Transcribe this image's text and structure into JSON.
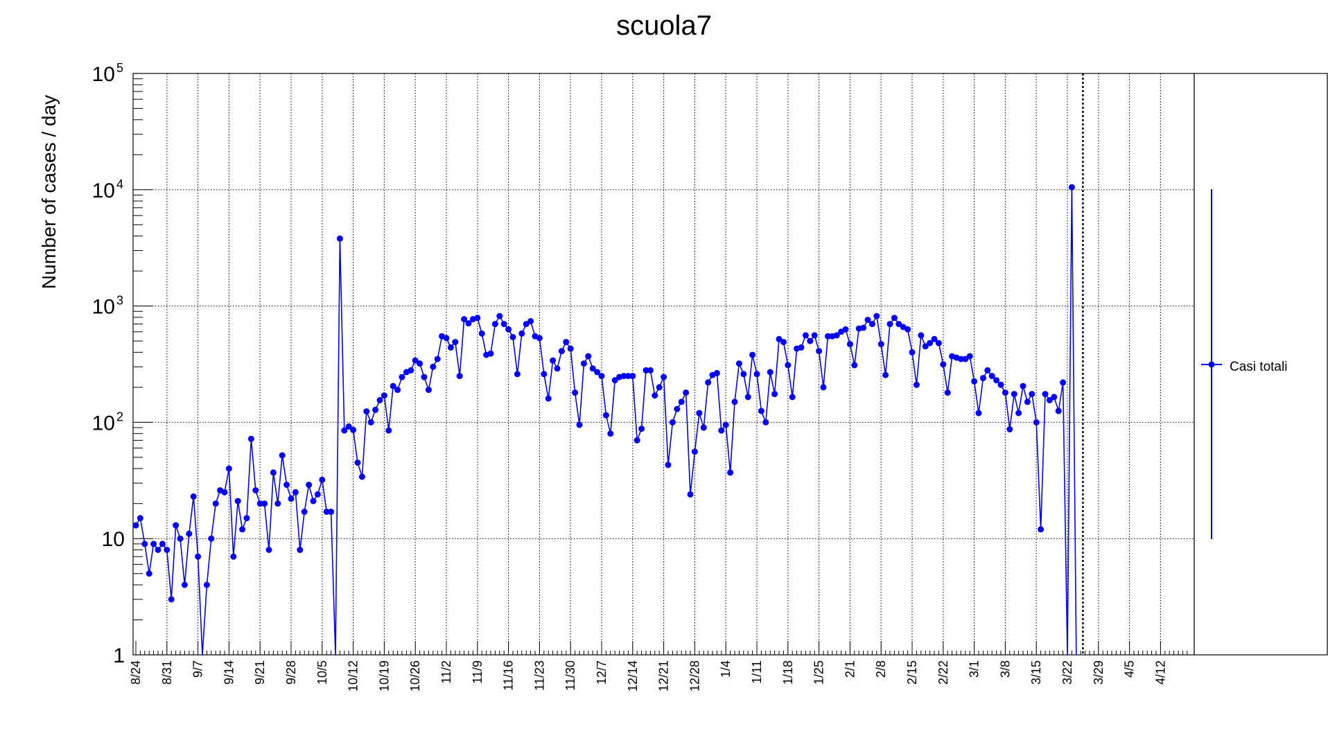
{
  "chart_data": {
    "type": "line",
    "title": "scuola7",
    "ylabel": "Number of cases / day",
    "xlabel": "",
    "yscale": "log",
    "ylim": [
      1,
      100000
    ],
    "y_ticks": [
      {
        "value": 1,
        "label": "1",
        "exp": ""
      },
      {
        "value": 10,
        "label": "10",
        "exp": ""
      },
      {
        "value": 100,
        "label": "10",
        "exp": "2"
      },
      {
        "value": 1000,
        "label": "10",
        "exp": "3"
      },
      {
        "value": 10000,
        "label": "10",
        "exp": "4"
      },
      {
        "value": 100000,
        "label": "10",
        "exp": "5"
      }
    ],
    "x_ticks": [
      "8/24",
      "8/31",
      "9/7",
      "9/14",
      "9/21",
      "9/28",
      "10/5",
      "10/12",
      "10/19",
      "10/26",
      "11/2",
      "11/9",
      "11/16",
      "11/23",
      "11/30",
      "12/7",
      "12/14",
      "12/21",
      "12/28",
      "1/4",
      "1/11",
      "1/18",
      "1/25",
      "2/1",
      "2/8",
      "2/15",
      "2/22",
      "3/1",
      "3/8",
      "3/15",
      "3/22",
      "3/29",
      "4/5",
      "4/12"
    ],
    "grid": true,
    "legend_position": "right",
    "vertical_line_day": 213.5,
    "series": [
      {
        "name": "Casi totali",
        "color": "#0000ff",
        "values": [
          13,
          15,
          9,
          5,
          9,
          8,
          9,
          8,
          3,
          13,
          10,
          4,
          11,
          23,
          7,
          0,
          4,
          10,
          20,
          26,
          25,
          40,
          7,
          21,
          12,
          15,
          72,
          26,
          20,
          20,
          8,
          37,
          20,
          52,
          29,
          22,
          25,
          8,
          17,
          29,
          21,
          24,
          32,
          17,
          17,
          0,
          3800,
          85,
          92,
          86,
          45,
          34,
          124,
          100,
          128,
          155,
          170,
          85,
          205,
          190,
          245,
          270,
          280,
          340,
          320,
          245,
          190,
          300,
          350,
          550,
          530,
          440,
          490,
          250,
          770,
          710,
          770,
          790,
          580,
          380,
          390,
          700,
          820,
          700,
          630,
          540,
          260,
          580,
          700,
          740,
          550,
          530,
          260,
          160,
          340,
          290,
          410,
          490,
          430,
          180,
          95,
          320,
          370,
          290,
          270,
          250,
          115,
          80,
          230,
          245,
          250,
          250,
          250,
          70,
          88,
          280,
          280,
          170,
          200,
          245,
          43,
          100,
          130,
          150,
          180,
          24,
          56,
          120,
          90,
          220,
          255,
          265,
          85,
          95,
          37,
          150,
          320,
          260,
          165,
          380,
          260,
          125,
          100,
          270,
          175,
          520,
          490,
          310,
          165,
          430,
          440,
          560,
          500,
          560,
          410,
          200,
          550,
          550,
          560,
          600,
          630,
          470,
          310,
          640,
          650,
          760,
          700,
          820,
          470,
          255,
          700,
          790,
          700,
          660,
          630,
          400,
          210,
          560,
          450,
          480,
          520,
          480,
          315,
          180,
          370,
          360,
          350,
          350,
          370,
          225,
          120,
          240,
          280,
          250,
          230,
          210,
          180,
          87,
          175,
          120,
          205,
          150,
          175,
          100,
          12,
          175,
          155,
          165,
          125,
          220,
          0,
          10500,
          0
        ]
      }
    ]
  }
}
